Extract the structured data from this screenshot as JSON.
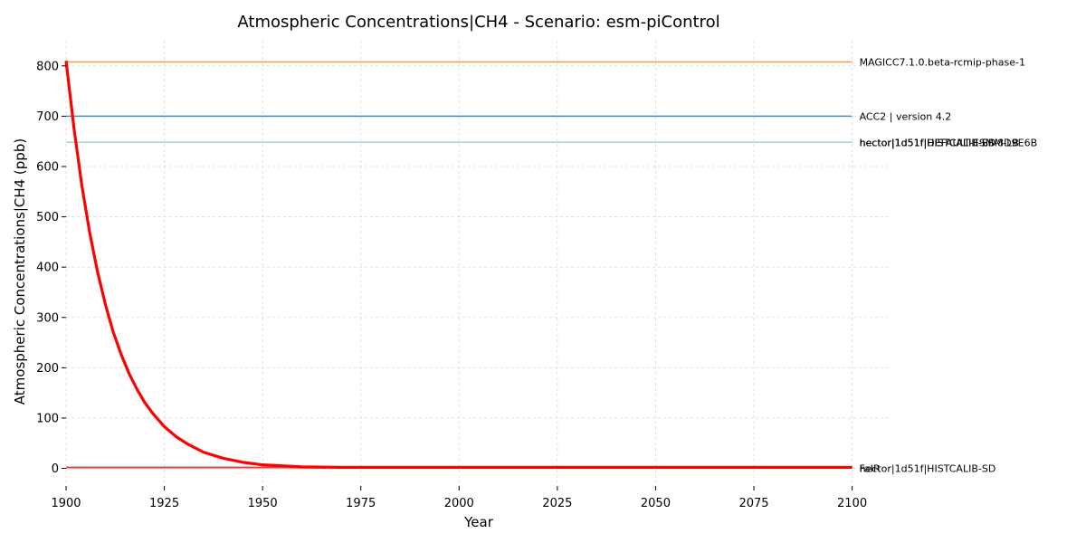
{
  "chart_data": {
    "type": "line",
    "title": "Atmospheric Concentrations|CH4 - Scenario: esm-piControl",
    "xlabel": "Year",
    "ylabel": "Atmospheric Concentrations|CH4 (ppb)",
    "xlim": [
      1900,
      2110
    ],
    "ylim": [
      -35,
      850
    ],
    "x_ticks": [
      1900,
      1925,
      1950,
      1975,
      2000,
      2025,
      2050,
      2075,
      2100
    ],
    "y_ticks": [
      0,
      100,
      200,
      300,
      400,
      500,
      600,
      700,
      800
    ],
    "grid": true,
    "legend": "labels at right end of each line",
    "series": [
      {
        "name": "MAGICC7.1.0.beta-rcmip-phase-1",
        "color": "#f5a037",
        "width": 1.5,
        "x": [
          1900,
          2100
        ],
        "y": [
          808,
          808
        ]
      },
      {
        "name": "ACC2 | version 4.2",
        "color": "#4a8bc4",
        "width": 1.5,
        "x": [
          1900,
          2100
        ],
        "y": [
          700,
          700
        ]
      },
      {
        "name": "hector|1d51f|HISTCALIB-SD",
        "color": "#a8d8d8",
        "width": 1.5,
        "x": [
          1900,
          2100
        ],
        "y": [
          648,
          648
        ]
      },
      {
        "name": "hector|1d51f|DEFAULT-ESM-8D9E6B",
        "color": "#9fd3d3",
        "width": 1.5,
        "x": [
          1900,
          2100
        ],
        "y": [
          648,
          648
        ]
      },
      {
        "name": "hector|1d51f|HISTCALIB-ESM-LB",
        "color": "#b3dcdc",
        "width": 1.5,
        "x": [
          1900,
          2100
        ],
        "y": [
          648,
          648
        ]
      },
      {
        "name": "hector|1d51f|DEFAULT",
        "color": "#95cfcf",
        "width": 1.5,
        "x": [
          1900,
          2100
        ],
        "y": [
          648,
          648
        ]
      },
      {
        "name": "hector|1d51f|HISTCALIB-ESM",
        "color": "#a0d6d6",
        "width": 1.5,
        "x": [
          1900,
          2100
        ],
        "y": [
          648,
          648
        ]
      },
      {
        "name": "FaIR",
        "color": "#d62728",
        "width": 1.5,
        "x": [
          1900,
          2100
        ],
        "y": [
          2,
          2
        ]
      },
      {
        "name": "hector|1d51f|HISTCALIB-SD",
        "color": "#e39a9a",
        "width": 1.5,
        "x": [
          1900,
          2100
        ],
        "y": [
          0,
          0
        ]
      },
      {
        "name": "",
        "color": "#ff0000",
        "width": 3.2,
        "x": [
          1900,
          1902,
          1904,
          1906,
          1908,
          1910,
          1912,
          1914,
          1916,
          1918,
          1920,
          1922,
          1925,
          1928,
          1931,
          1935,
          1940,
          1945,
          1950,
          1960,
          1970,
          1980,
          2000,
          2050,
          2100
        ],
        "y": [
          810,
          677,
          563,
          469,
          391,
          326,
          271,
          227,
          189,
          158,
          131,
          110,
          83,
          63,
          48,
          32,
          20,
          12,
          7,
          3,
          2,
          2,
          2,
          2,
          2
        ]
      }
    ],
    "end_labels": [
      {
        "text": "MAGICC7.1.0.beta-rcmip-phase-1",
        "y": 808
      },
      {
        "text": "ACC2 | version 4.2",
        "y": 700
      },
      {
        "text": "hector|1d51f|HISTCALIB-SD",
        "y": 648
      },
      {
        "text": "hector|1d51f|DEFAULT-ESM-8D9E6B",
        "y": 648
      },
      {
        "text": "hector|1d51f|HISTCALIB-ESM-LB",
        "y": 648
      },
      {
        "text": "FaIR",
        "y": 0
      },
      {
        "text": "hector|1d51f|HISTCALIB-SD",
        "y": 0
      }
    ]
  }
}
